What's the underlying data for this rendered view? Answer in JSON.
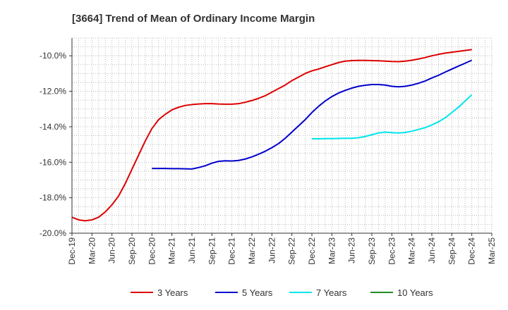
{
  "chart_data": {
    "type": "line",
    "title": "[3664]  Trend of Mean of Ordinary Income Margin",
    "xlabel": "",
    "ylabel": "",
    "x_ticks": [
      "Dec-19",
      "Mar-20",
      "Jun-20",
      "Sep-20",
      "Dec-20",
      "Mar-21",
      "Jun-21",
      "Sep-21",
      "Dec-21",
      "Mar-22",
      "Jun-22",
      "Sep-22",
      "Dec-22",
      "Mar-23",
      "Jun-23",
      "Sep-23",
      "Dec-23",
      "Mar-24",
      "Jun-24",
      "Sep-24",
      "Dec-24",
      "Mar-25"
    ],
    "y_ticks": [
      "-20.0%",
      "-18.0%",
      "-16.0%",
      "-14.0%",
      "-12.0%",
      "-10.0%"
    ],
    "ylim": [
      -20.0,
      -9.0
    ],
    "grid": true,
    "legend_position": "bottom",
    "series": [
      {
        "name": "3 Years",
        "color": "#dd0000",
        "x": [
          "Dec-19",
          "Jan-20",
          "Feb-20",
          "Mar-20",
          "Apr-20",
          "May-20",
          "Jun-20",
          "Jul-20",
          "Aug-20",
          "Sep-20",
          "Oct-20",
          "Nov-20",
          "Dec-20",
          "Jan-21",
          "Feb-21",
          "Mar-21",
          "Apr-21",
          "May-21",
          "Jun-21",
          "Jul-21",
          "Aug-21",
          "Sep-21",
          "Oct-21",
          "Nov-21",
          "Dec-21",
          "Jan-22",
          "Feb-22",
          "Mar-22",
          "Apr-22",
          "May-22",
          "Jun-22",
          "Jul-22",
          "Aug-22",
          "Sep-22",
          "Oct-22",
          "Nov-22",
          "Dec-22",
          "Jan-23",
          "Feb-23",
          "Mar-23",
          "Apr-23",
          "May-23",
          "Jun-23",
          "Jul-23",
          "Aug-23",
          "Sep-23",
          "Oct-23",
          "Nov-23",
          "Dec-23",
          "Jan-24",
          "Feb-24",
          "Mar-24",
          "Apr-24",
          "May-24",
          "Jun-24",
          "Jul-24",
          "Aug-24",
          "Sep-24",
          "Oct-24",
          "Nov-24",
          "Dec-24"
        ],
        "y": [
          -19.1,
          -19.25,
          -19.3,
          -19.25,
          -19.1,
          -18.8,
          -18.4,
          -17.9,
          -17.2,
          -16.4,
          -15.6,
          -14.8,
          -14.1,
          -13.6,
          -13.3,
          -13.05,
          -12.9,
          -12.8,
          -12.75,
          -12.72,
          -12.7,
          -12.7,
          -12.72,
          -12.73,
          -12.73,
          -12.7,
          -12.62,
          -12.52,
          -12.4,
          -12.25,
          -12.05,
          -11.85,
          -11.65,
          -11.4,
          -11.2,
          -11.0,
          -10.85,
          -10.75,
          -10.62,
          -10.5,
          -10.38,
          -10.3,
          -10.27,
          -10.26,
          -10.26,
          -10.27,
          -10.28,
          -10.3,
          -10.32,
          -10.33,
          -10.3,
          -10.25,
          -10.18,
          -10.1,
          -10.0,
          -9.92,
          -9.85,
          -9.8,
          -9.75,
          -9.7,
          -9.65
        ]
      },
      {
        "name": "5 Years",
        "color": "#0000cc",
        "x": [
          "Dec-20",
          "Jan-21",
          "Feb-21",
          "Mar-21",
          "Apr-21",
          "May-21",
          "Jun-21",
          "Jul-21",
          "Aug-21",
          "Sep-21",
          "Oct-21",
          "Nov-21",
          "Dec-21",
          "Jan-22",
          "Feb-22",
          "Mar-22",
          "Apr-22",
          "May-22",
          "Jun-22",
          "Jul-22",
          "Aug-22",
          "Sep-22",
          "Oct-22",
          "Nov-22",
          "Dec-22",
          "Jan-23",
          "Feb-23",
          "Mar-23",
          "Apr-23",
          "May-23",
          "Jun-23",
          "Jul-23",
          "Aug-23",
          "Sep-23",
          "Oct-23",
          "Nov-23",
          "Dec-23",
          "Jan-24",
          "Feb-24",
          "Mar-24",
          "Apr-24",
          "May-24",
          "Jun-24",
          "Jul-24",
          "Aug-24",
          "Sep-24",
          "Oct-24",
          "Nov-24",
          "Dec-24"
        ],
        "y": [
          -16.35,
          -16.35,
          -16.35,
          -16.36,
          -16.36,
          -16.37,
          -16.38,
          -16.3,
          -16.2,
          -16.05,
          -15.95,
          -15.92,
          -15.93,
          -15.9,
          -15.82,
          -15.7,
          -15.55,
          -15.38,
          -15.18,
          -14.95,
          -14.65,
          -14.3,
          -13.95,
          -13.6,
          -13.2,
          -12.85,
          -12.55,
          -12.3,
          -12.1,
          -11.95,
          -11.82,
          -11.72,
          -11.66,
          -11.62,
          -11.62,
          -11.65,
          -11.72,
          -11.75,
          -11.72,
          -11.65,
          -11.55,
          -11.42,
          -11.25,
          -11.1,
          -10.92,
          -10.75,
          -10.58,
          -10.42,
          -10.25
        ]
      },
      {
        "name": "7 Years",
        "color": "#00e5ee",
        "x": [
          "Dec-22",
          "Jan-23",
          "Feb-23",
          "Mar-23",
          "Apr-23",
          "May-23",
          "Jun-23",
          "Jul-23",
          "Aug-23",
          "Sep-23",
          "Oct-23",
          "Nov-23",
          "Dec-23",
          "Jan-24",
          "Feb-24",
          "Mar-24",
          "Apr-24",
          "May-24",
          "Jun-24",
          "Jul-24",
          "Aug-24",
          "Sep-24",
          "Oct-24",
          "Nov-24",
          "Dec-24"
        ],
        "y": [
          -14.68,
          -14.68,
          -14.67,
          -14.67,
          -14.66,
          -14.65,
          -14.65,
          -14.62,
          -14.55,
          -14.45,
          -14.35,
          -14.3,
          -14.33,
          -14.35,
          -14.32,
          -14.25,
          -14.15,
          -14.05,
          -13.9,
          -13.72,
          -13.5,
          -13.2,
          -12.9,
          -12.55,
          -12.2
        ]
      },
      {
        "name": "10 Years",
        "color": "#228b22",
        "x": [],
        "y": []
      }
    ]
  }
}
